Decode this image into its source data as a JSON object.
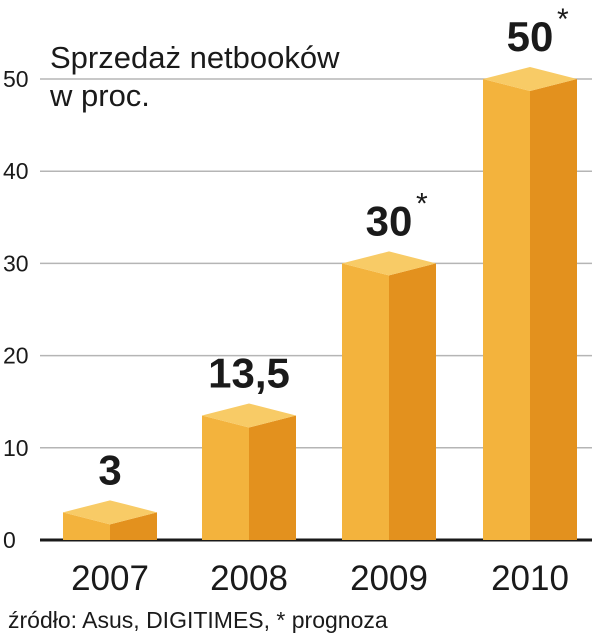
{
  "chart_data": {
    "type": "bar",
    "title_line1": "Sprzedaż netbooków",
    "title_line2": "w proc.",
    "categories": [
      "2007",
      "2008",
      "2009",
      "2010"
    ],
    "values": [
      3,
      13.5,
      30,
      50
    ],
    "value_labels": [
      "3",
      "13,5",
      "30",
      "50"
    ],
    "forecast": [
      false,
      false,
      true,
      true
    ],
    "forecast_marker": "*",
    "yticks": [
      "0",
      "10",
      "20",
      "30",
      "40",
      "50"
    ],
    "ylim": [
      0,
      50
    ],
    "grid": true,
    "source": "źródło: Asus, DIGITIMES, * prognoza",
    "colors": {
      "front": "#f3b33d",
      "side": "#e3911e",
      "top": "#f8cb66",
      "grid": "#b5b5b5",
      "axis": "#1a1a1a"
    }
  }
}
